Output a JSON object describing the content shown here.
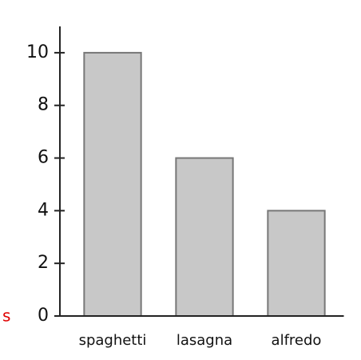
{
  "chart_data": {
    "type": "bar",
    "categories": [
      "spaghetti",
      "lasagna",
      "alfredo"
    ],
    "values": [
      10,
      6,
      4
    ],
    "color": "#c8c8c8",
    "ylim": [
      0,
      11
    ],
    "yticks": [
      0,
      2,
      4,
      6,
      8,
      10
    ],
    "grid": false,
    "annotation": {
      "text": "s",
      "color": "#e00000"
    }
  }
}
